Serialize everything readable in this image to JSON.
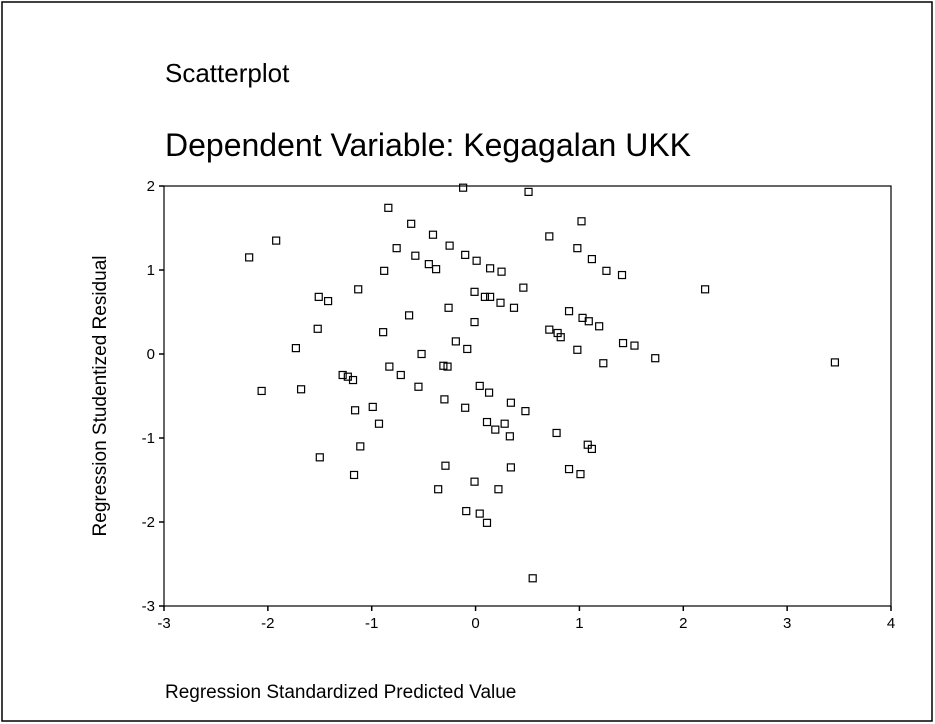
{
  "chart_data": {
    "type": "scatter",
    "title": "Scatterplot",
    "subtitle": "Dependent Variable: Kegagalan UKK",
    "x_label": "Regression Standardized Predicted Value",
    "y_label": "Regression Studentized Residual",
    "xlim": [
      -3,
      4
    ],
    "xticks": [
      -3,
      -2,
      -1,
      0,
      1,
      2,
      3,
      4
    ],
    "ylim": [
      -3,
      2
    ],
    "yticks": [
      -3,
      -2,
      -1,
      0,
      1,
      2
    ],
    "color": "#000000",
    "x": [
      -2.18,
      -1.92,
      -0.84,
      -0.62,
      -0.12,
      0.51,
      1.02,
      0.71,
      -0.41,
      -0.76,
      -0.58,
      -0.25,
      -0.45,
      -0.38,
      -0.1,
      0.01,
      0.14,
      0.25,
      -0.88,
      0.98,
      1.12,
      1.26,
      1.41,
      2.21,
      -1.13,
      -1.51,
      -1.42,
      -0.01,
      0.09,
      0.14,
      0.46,
      0.24,
      0.37,
      -0.26,
      -0.64,
      0.9,
      1.03,
      1.09,
      1.19,
      0.71,
      0.79,
      0.82,
      -0.01,
      -1.52,
      -0.89,
      -0.19,
      -0.08,
      -1.73,
      -0.52,
      0.98,
      1.42,
      1.53,
      1.23,
      1.73,
      3.46,
      -0.83,
      -0.31,
      -0.27,
      -1.28,
      -1.23,
      -1.18,
      -0.72,
      -2.06,
      -1.68,
      -0.55,
      0.04,
      0.13,
      -0.3,
      0.34,
      -0.99,
      0.48,
      -1.16,
      -0.1,
      0.11,
      0.28,
      0.19,
      0.33,
      -0.93,
      0.78,
      -1.11,
      1.08,
      1.12,
      -1.5,
      -0.29,
      0.34,
      0.9,
      1.01,
      -1.17,
      -0.01,
      -0.36,
      0.22,
      -0.09,
      0.04,
      0.11,
      0.55
    ],
    "values": [
      1.15,
      1.35,
      1.74,
      1.55,
      1.98,
      1.93,
      1.58,
      1.4,
      1.42,
      1.26,
      1.17,
      1.29,
      1.07,
      1.01,
      1.18,
      1.11,
      1.02,
      0.98,
      0.99,
      1.26,
      1.13,
      0.99,
      0.94,
      0.77,
      0.77,
      0.68,
      0.63,
      0.74,
      0.68,
      0.68,
      0.79,
      0.61,
      0.55,
      0.55,
      0.46,
      0.51,
      0.43,
      0.39,
      0.33,
      0.29,
      0.25,
      0.2,
      0.38,
      0.3,
      0.26,
      0.15,
      0.06,
      0.07,
      0.0,
      0.05,
      0.13,
      0.1,
      -0.11,
      -0.05,
      -0.1,
      -0.15,
      -0.14,
      -0.15,
      -0.25,
      -0.27,
      -0.31,
      -0.25,
      -0.44,
      -0.42,
      -0.39,
      -0.38,
      -0.46,
      -0.54,
      -0.58,
      -0.63,
      -0.68,
      -0.67,
      -0.64,
      -0.81,
      -0.83,
      -0.9,
      -0.98,
      -0.83,
      -0.94,
      -1.1,
      -1.08,
      -1.13,
      -1.23,
      -1.33,
      -1.35,
      -1.37,
      -1.43,
      -1.44,
      -1.52,
      -1.61,
      -1.61,
      -1.87,
      -1.9,
      -2.01,
      -2.67
    ]
  }
}
